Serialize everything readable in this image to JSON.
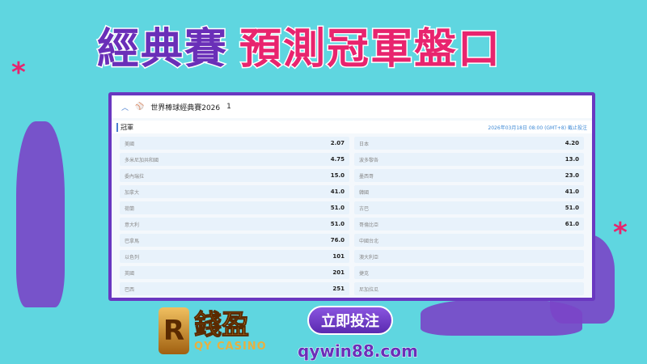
{
  "banner": {
    "title_part1": "經典賽",
    "title_part2": "預測冠軍盤口"
  },
  "panel": {
    "event": "世界棒球經典賽2026",
    "count": "1",
    "market": "冠軍",
    "deadline": "2026年03月18日 08:00 (GMT+8) 截止投注",
    "left": [
      {
        "team": "美國",
        "odds": "2.07"
      },
      {
        "team": "多米尼加共和國",
        "odds": "4.75"
      },
      {
        "team": "委內瑞拉",
        "odds": "15.0"
      },
      {
        "team": "加拿大",
        "odds": "41.0"
      },
      {
        "team": "荷蘭",
        "odds": "51.0"
      },
      {
        "team": "意大利",
        "odds": "51.0"
      },
      {
        "team": "巴拿馬",
        "odds": "76.0"
      },
      {
        "team": "以色列",
        "odds": "101"
      },
      {
        "team": "英國",
        "odds": "201"
      },
      {
        "team": "巴西",
        "odds": "251"
      }
    ],
    "right": [
      {
        "team": "日本",
        "odds": "4.20"
      },
      {
        "team": "波多黎各",
        "odds": "13.0"
      },
      {
        "team": "墨西哥",
        "odds": "23.0"
      },
      {
        "team": "韓國",
        "odds": "41.0"
      },
      {
        "team": "古巴",
        "odds": "51.0"
      },
      {
        "team": "哥倫比亞",
        "odds": "61.0"
      },
      {
        "team": "中國台北",
        "odds": ""
      },
      {
        "team": "澳大利亞",
        "odds": ""
      },
      {
        "team": "捷克",
        "odds": ""
      },
      {
        "team": "尼加拉瓜",
        "odds": ""
      }
    ]
  },
  "cta": {
    "bet_label": "立即投注",
    "url": "qywin88.com"
  },
  "logo": {
    "name_cn": "錢盈",
    "name_en": "QY CASINO",
    "mark": "R"
  },
  "colors": {
    "background": "#5fd6e0",
    "purple": "#6a2fb8",
    "pink": "#e8246e"
  }
}
